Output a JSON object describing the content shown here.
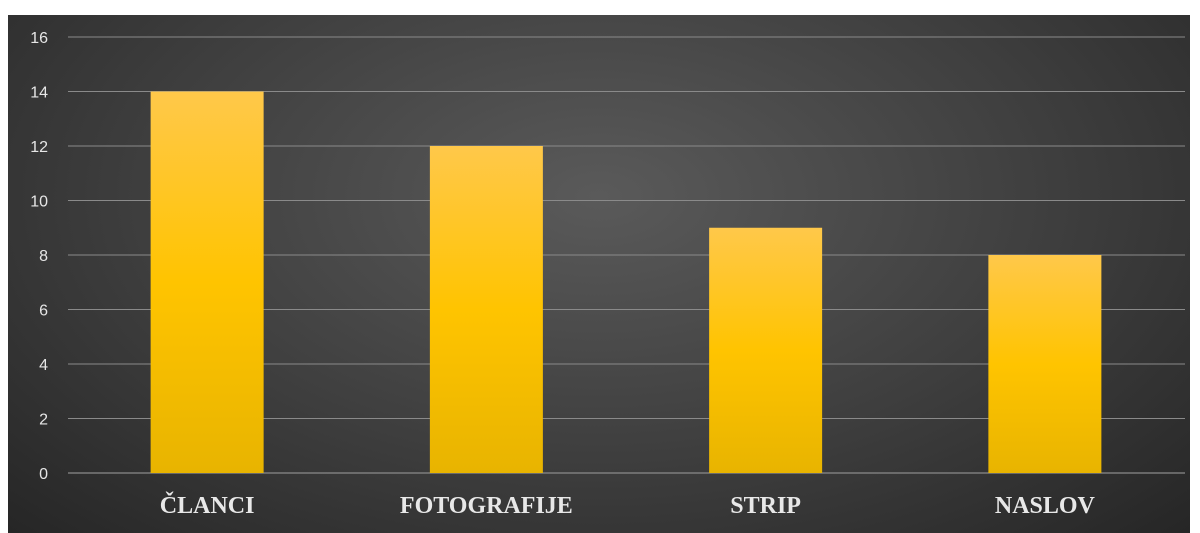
{
  "chart_data": {
    "type": "bar",
    "categories": [
      "ČLANCI",
      "FOTOGRAFIJE",
      "STRIP",
      "NASLOV"
    ],
    "values": [
      14,
      12,
      9,
      8
    ],
    "ylim": [
      0,
      16
    ],
    "y_ticks": [
      0,
      2,
      4,
      6,
      8,
      10,
      12,
      14,
      16
    ],
    "grid": true,
    "legend": "none",
    "colors": {
      "background": "#3e3e3e",
      "bar_top": "#ffc84a",
      "bar_mid": "#ffc400",
      "bar_bottom": "#e8b400",
      "gridline": "#8a8a8a",
      "text": "#e6e6e6"
    }
  }
}
